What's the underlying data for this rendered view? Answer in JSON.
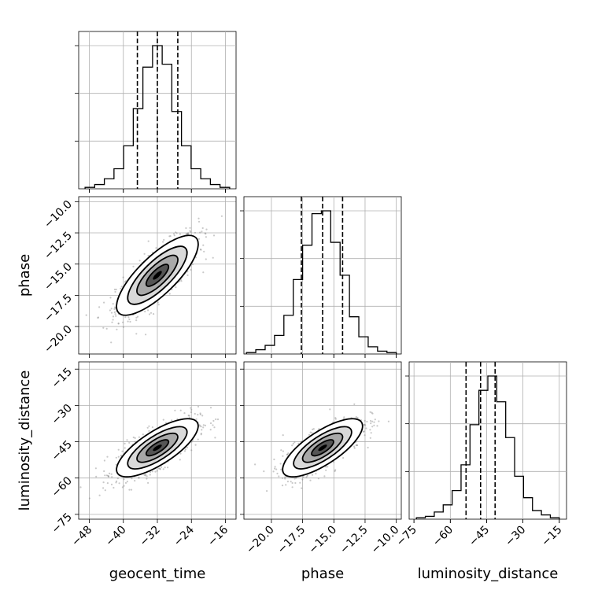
{
  "chart_data": {
    "type": "corner",
    "parameters": [
      {
        "name": "geocent_time",
        "xlabel": "geocent_time",
        "ticks": [
          -48,
          -40,
          -32,
          -24,
          -16
        ],
        "range": [
          -50.5,
          -13.5
        ]
      },
      {
        "name": "phase",
        "xlabel": "phase",
        "ylabel": "phase",
        "ticks": [
          -20.0,
          -17.5,
          -15.0,
          -12.5,
          -10.0
        ],
        "tick_labels": [
          "−20.0",
          "−17.5",
          "−15.0",
          "−12.5",
          "−10.0"
        ],
        "range": [
          -22.2,
          -9.6
        ]
      },
      {
        "name": "luminosity_distance",
        "xlabel": "luminosity_distance",
        "ylabel": "luminosity_distance",
        "ticks": [
          -75,
          -60,
          -45,
          -30,
          -15
        ],
        "range": [
          -77,
          -12
        ]
      }
    ],
    "histograms": [
      {
        "parameter": "geocent_time",
        "bin_edges_range": [
          -49,
          -15
        ],
        "counts": [
          0.01,
          0.03,
          0.07,
          0.14,
          0.3,
          0.56,
          0.85,
          1.0,
          0.87,
          0.54,
          0.3,
          0.14,
          0.07,
          0.03,
          0.01
        ],
        "quantiles": [
          -36.7,
          -32.0,
          -27.2
        ]
      },
      {
        "parameter": "phase",
        "bin_edges_range": [
          -22,
          -10
        ],
        "counts": [
          0.01,
          0.03,
          0.06,
          0.13,
          0.27,
          0.52,
          0.76,
          0.98,
          1.0,
          0.78,
          0.55,
          0.26,
          0.12,
          0.05,
          0.02,
          0.01
        ],
        "quantiles": [
          -17.6,
          -15.9,
          -14.3
        ]
      },
      {
        "parameter": "luminosity_distance",
        "bin_edges_range": [
          -74,
          -15
        ],
        "counts": [
          0.01,
          0.02,
          0.05,
          0.1,
          0.2,
          0.38,
          0.66,
          0.9,
          1.0,
          0.82,
          0.57,
          0.3,
          0.15,
          0.06,
          0.03,
          0.01
        ],
        "quantiles": [
          -53.5,
          -47.5,
          -41.5
        ]
      }
    ],
    "pairs": [
      {
        "x": "geocent_time",
        "y": "phase",
        "center": [
          -32.0,
          -15.9
        ],
        "std": [
          4.8,
          1.6
        ],
        "correlation": 0.78
      },
      {
        "x": "geocent_time",
        "y": "luminosity_distance",
        "center": [
          -32.0,
          -47.5
        ],
        "std": [
          4.8,
          6.0
        ],
        "correlation": 0.75
      },
      {
        "x": "phase",
        "y": "luminosity_distance",
        "center": [
          -15.9,
          -47.5
        ],
        "std": [
          1.6,
          6.0
        ],
        "correlation": 0.75
      }
    ],
    "grid": true,
    "quantile_line_style": "dashed"
  }
}
